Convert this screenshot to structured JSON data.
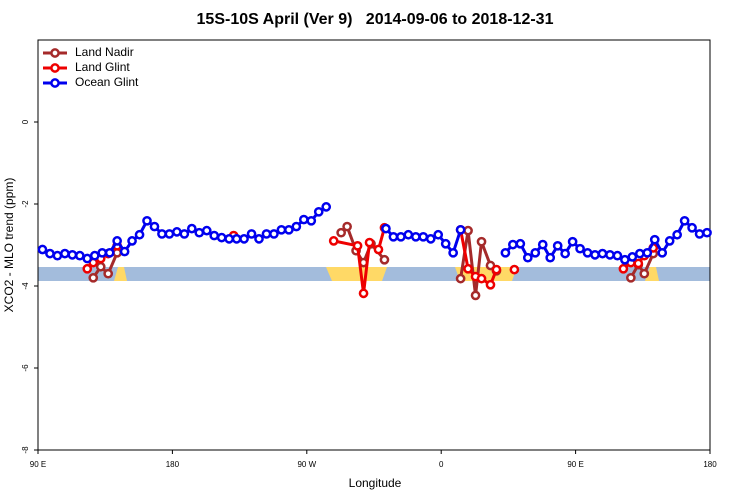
{
  "chart_data": {
    "type": "line",
    "title": "15S-10S April (Ver 9)   2014-09-06 to 2018-12-31",
    "xlabel": "Longitude",
    "ylabel": "XCO2 - MLO trend (ppm)",
    "xlim": [
      90,
      540
    ],
    "xticks": [
      {
        "value": 90,
        "label": "90 E"
      },
      180,
      {
        "value": 270,
        "label": "90 W"
      },
      {
        "value": 360,
        "label": "0"
      },
      {
        "value": 450,
        "label": "90 E"
      },
      {
        "value": 540,
        "label": "180"
      }
    ],
    "ylim": [
      -8,
      2
    ],
    "yticks": [
      -8,
      -6,
      -4,
      -2,
      0
    ],
    "legend": "top-left",
    "series": [
      {
        "name": "Land Nadir",
        "color": "#a52a2a",
        "x": [
          127,
          132,
          137,
          143,
          200,
          293,
          297,
          303,
          308,
          313,
          322,
          350,
          373,
          378,
          383,
          387,
          393,
          397,
          450,
          487,
          492,
          496,
          502
        ],
        "values": [
          -3.8,
          -3.53,
          -3.7,
          -3.19,
          null,
          -2.7,
          -2.55,
          -3.14,
          -3.43,
          -2.97,
          -3.36,
          null,
          -3.82,
          -2.65,
          -4.23,
          -2.92,
          -3.5,
          -3.63,
          null,
          -3.8,
          -3.48,
          -3.7,
          -3.21
        ]
      },
      {
        "name": "Land Glint",
        "color": "#ee0000",
        "x": [
          123,
          127,
          132,
          137,
          143,
          180,
          221,
          260,
          288,
          304,
          308,
          312,
          318,
          322,
          350,
          373,
          378,
          383,
          387,
          393,
          397,
          403,
          409,
          450,
          482,
          487,
          492,
          496,
          502
        ],
        "values": [
          -3.58,
          -3.43,
          -3.33,
          -3.21,
          -3.02,
          null,
          -2.77,
          null,
          -2.9,
          -3.02,
          -4.18,
          -2.94,
          -3.11,
          -2.58,
          null,
          -2.63,
          -3.58,
          -3.77,
          -3.82,
          -3.97,
          -3.6,
          null,
          -3.6,
          null,
          -3.58,
          -3.43,
          -3.45,
          -3.26,
          -3.07
        ]
      },
      {
        "name": "Ocean Glint",
        "color": "#0000ee",
        "x": [
          93,
          98,
          103,
          108,
          113,
          118,
          123,
          128,
          133,
          138,
          143,
          148,
          153,
          158,
          163,
          168,
          173,
          178,
          183,
          188,
          193,
          198,
          203,
          208,
          213,
          218,
          223,
          228,
          233,
          238,
          243,
          248,
          253,
          258,
          263,
          268,
          273,
          278,
          283,
          303,
          323,
          328,
          333,
          338,
          343,
          348,
          353,
          358,
          363,
          368,
          373,
          388,
          403,
          408,
          413,
          418,
          423,
          428,
          433,
          438,
          443,
          448,
          453,
          458,
          463,
          468,
          473,
          478,
          483,
          488,
          493,
          498,
          503,
          508,
          513,
          518,
          523,
          528,
          533,
          538
        ],
        "values": [
          -3.11,
          -3.21,
          -3.26,
          -3.21,
          -3.24,
          -3.26,
          -3.33,
          -3.26,
          -3.19,
          -3.19,
          -2.9,
          -3.16,
          -2.9,
          -2.75,
          -2.41,
          -2.55,
          -2.73,
          -2.73,
          -2.68,
          -2.73,
          -2.6,
          -2.7,
          -2.65,
          -2.77,
          -2.82,
          -2.85,
          -2.85,
          -2.85,
          -2.73,
          -2.85,
          -2.73,
          -2.73,
          -2.63,
          -2.63,
          -2.55,
          -2.38,
          -2.41,
          -2.19,
          -2.07,
          null,
          -2.6,
          -2.8,
          -2.8,
          -2.75,
          -2.8,
          -2.8,
          -2.85,
          -2.75,
          -2.97,
          -3.19,
          -2.63,
          null,
          -3.19,
          -2.99,
          -2.97,
          -3.31,
          -3.19,
          -2.99,
          -3.31,
          -3.02,
          -3.21,
          -2.92,
          -3.09,
          -3.19,
          -3.24,
          -3.21,
          -3.24,
          -3.26,
          -3.36,
          -3.29,
          -3.21,
          -3.19,
          -2.87,
          -3.19,
          -2.9,
          -2.75,
          -2.41,
          -2.58,
          -2.73,
          -2.7
        ]
      }
    ]
  }
}
